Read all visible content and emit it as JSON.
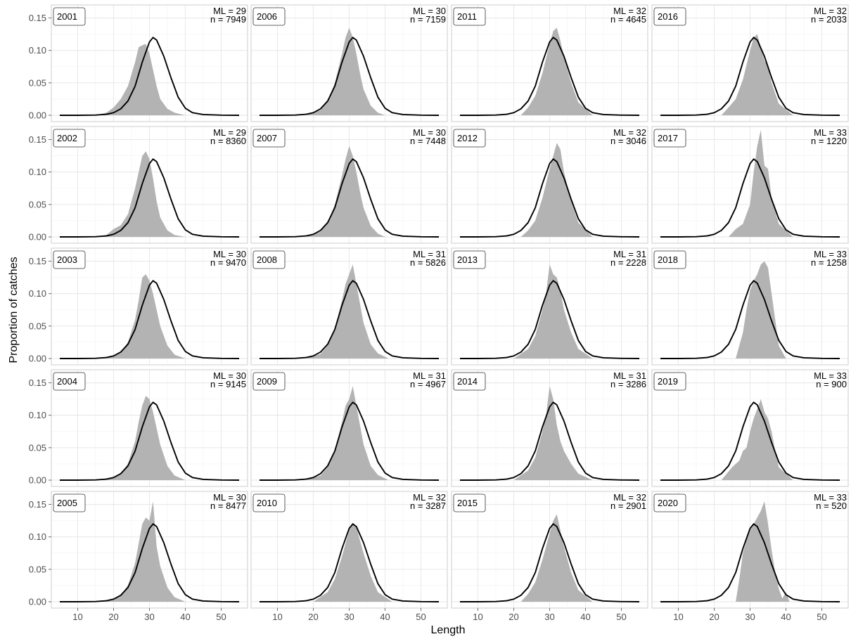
{
  "chart_data": {
    "type": "area",
    "xlabel": "Length",
    "ylabel": "Proportion of catches",
    "xlim": [
      5,
      55
    ],
    "ylim": [
      0,
      0.15
    ],
    "x_ticks": [
      10,
      20,
      30,
      40,
      50
    ],
    "y_ticks": [
      0.0,
      0.05,
      0.1,
      0.15
    ],
    "y_tick_labels": [
      "0.00",
      "0.05",
      "0.10",
      "0.15"
    ],
    "grid": true,
    "layout": "5 rows x 4 columns, years run down each column",
    "colors": {
      "observed_fill": "#b3b3b3",
      "reference_line": "#000000",
      "panel_border": "#cccccc"
    },
    "reference_curve": {
      "name": "",
      "x": [
        5,
        10,
        15,
        18,
        20,
        22,
        24,
        26,
        28,
        30,
        31,
        32,
        34,
        36,
        38,
        40,
        42,
        45,
        50,
        55
      ],
      "y": [
        0,
        0,
        0.0003,
        0.0015,
        0.004,
        0.01,
        0.022,
        0.045,
        0.082,
        0.113,
        0.12,
        0.116,
        0.091,
        0.058,
        0.028,
        0.011,
        0.004,
        0.0012,
        0.0002,
        0
      ]
    },
    "panels": [
      {
        "year": "2001",
        "ml_label": "ML = 29",
        "n_label": "n = 7949",
        "x": [
          15,
          18,
          20,
          22,
          24,
          26,
          27,
          28,
          29,
          30,
          31,
          32,
          33,
          35,
          37,
          40
        ],
        "y": [
          0,
          0.004,
          0.012,
          0.025,
          0.045,
          0.082,
          0.105,
          0.108,
          0.11,
          0.095,
          0.07,
          0.045,
          0.025,
          0.01,
          0.004,
          0
        ]
      },
      {
        "year": "2002",
        "ml_label": "ML = 29",
        "n_label": "n = 8360",
        "x": [
          15,
          18,
          20,
          22,
          24,
          26,
          27,
          28,
          29,
          30,
          31,
          32,
          33,
          35,
          37,
          40
        ],
        "y": [
          0,
          0.003,
          0.012,
          0.018,
          0.035,
          0.075,
          0.1,
          0.125,
          0.132,
          0.12,
          0.09,
          0.055,
          0.03,
          0.01,
          0.003,
          0
        ]
      },
      {
        "year": "2003",
        "ml_label": "ML = 30",
        "n_label": "n = 9470",
        "x": [
          16,
          20,
          22,
          24,
          26,
          27,
          28,
          29,
          30,
          31,
          32,
          33,
          35,
          37,
          40
        ],
        "y": [
          0,
          0.004,
          0.01,
          0.025,
          0.06,
          0.09,
          0.125,
          0.13,
          0.12,
          0.1,
          0.075,
          0.05,
          0.02,
          0.006,
          0
        ]
      },
      {
        "year": "2004",
        "ml_label": "ML = 30",
        "n_label": "n = 9145",
        "x": [
          16,
          20,
          22,
          24,
          26,
          27,
          28,
          29,
          30,
          31,
          32,
          33,
          35,
          37,
          40
        ],
        "y": [
          0,
          0.004,
          0.01,
          0.025,
          0.06,
          0.09,
          0.115,
          0.13,
          0.125,
          0.105,
          0.08,
          0.055,
          0.022,
          0.007,
          0
        ]
      },
      {
        "year": "2005",
        "ml_label": "ML = 30",
        "n_label": "n = 8477",
        "x": [
          16,
          20,
          22,
          24,
          26,
          27,
          28,
          29,
          30,
          31,
          32,
          33,
          35,
          37,
          40
        ],
        "y": [
          0,
          0.004,
          0.01,
          0.025,
          0.06,
          0.09,
          0.12,
          0.13,
          0.125,
          0.155,
          0.085,
          0.055,
          0.022,
          0.007,
          0
        ]
      },
      {
        "year": "2006",
        "ml_label": "ML = 30",
        "n_label": "n = 7159",
        "x": [
          18,
          22,
          24,
          26,
          28,
          29,
          30,
          31,
          32,
          33,
          34,
          36,
          38,
          40
        ],
        "y": [
          0,
          0.008,
          0.022,
          0.05,
          0.095,
          0.12,
          0.135,
          0.12,
          0.095,
          0.065,
          0.04,
          0.015,
          0.004,
          0
        ]
      },
      {
        "year": "2007",
        "ml_label": "ML = 30",
        "n_label": "n = 7448",
        "x": [
          18,
          22,
          24,
          26,
          28,
          29,
          30,
          31,
          32,
          33,
          34,
          36,
          38,
          40
        ],
        "y": [
          0,
          0.008,
          0.022,
          0.05,
          0.095,
          0.12,
          0.14,
          0.125,
          0.1,
          0.07,
          0.045,
          0.017,
          0.005,
          0
        ]
      },
      {
        "year": "2008",
        "ml_label": "ML = 31",
        "n_label": "n = 5826",
        "x": [
          18,
          22,
          24,
          26,
          28,
          29,
          30,
          31,
          32,
          33,
          34,
          36,
          38,
          41
        ],
        "y": [
          0,
          0.007,
          0.02,
          0.045,
          0.09,
          0.115,
          0.13,
          0.145,
          0.115,
          0.085,
          0.055,
          0.022,
          0.008,
          0
        ]
      },
      {
        "year": "2009",
        "ml_label": "ML = 31",
        "n_label": "n = 4967",
        "x": [
          18,
          22,
          24,
          26,
          28,
          29,
          30,
          31,
          32,
          33,
          34,
          36,
          38,
          41
        ],
        "y": [
          0,
          0.007,
          0.02,
          0.045,
          0.09,
          0.115,
          0.125,
          0.145,
          0.115,
          0.085,
          0.055,
          0.022,
          0.008,
          0
        ]
      },
      {
        "year": "2010",
        "ml_label": "ML = 32",
        "n_label": "n = 3287",
        "x": [
          20,
          24,
          26,
          28,
          30,
          31,
          32,
          33,
          34,
          36,
          38,
          42
        ],
        "y": [
          0,
          0.015,
          0.035,
          0.07,
          0.11,
          0.12,
          0.115,
          0.095,
          0.075,
          0.04,
          0.015,
          0
        ]
      },
      {
        "year": "2011",
        "ml_label": "ML = 32",
        "n_label": "n = 4645",
        "x": [
          22,
          24,
          26,
          28,
          30,
          31,
          32,
          33,
          34,
          36,
          38,
          42
        ],
        "y": [
          0,
          0.012,
          0.03,
          0.065,
          0.11,
          0.13,
          0.135,
          0.115,
          0.09,
          0.05,
          0.02,
          0
        ]
      },
      {
        "year": "2012",
        "ml_label": "ML = 32",
        "n_label": "n = 3046",
        "x": [
          22,
          24,
          26,
          28,
          30,
          31,
          32,
          33,
          34,
          36,
          38,
          42
        ],
        "y": [
          0,
          0.01,
          0.025,
          0.06,
          0.105,
          0.125,
          0.145,
          0.135,
          0.1,
          0.055,
          0.022,
          0
        ]
      },
      {
        "year": "2013",
        "ml_label": "ML = 31",
        "n_label": "n = 2228",
        "x": [
          20,
          24,
          26,
          28,
          29,
          30,
          31,
          32,
          33,
          34,
          36,
          38,
          42
        ],
        "y": [
          0,
          0.015,
          0.035,
          0.075,
          0.1,
          0.145,
          0.13,
          0.125,
          0.105,
          0.075,
          0.04,
          0.015,
          0
        ]
      },
      {
        "year": "2014",
        "ml_label": "ML = 31",
        "n_label": "n = 3286",
        "x": [
          20,
          24,
          26,
          28,
          29,
          30,
          31,
          32,
          33,
          34,
          36,
          38,
          42
        ],
        "y": [
          0,
          0.015,
          0.035,
          0.075,
          0.1,
          0.145,
          0.125,
          0.085,
          0.06,
          0.045,
          0.025,
          0.01,
          0
        ]
      },
      {
        "year": "2015",
        "ml_label": "ML = 32",
        "n_label": "n = 2901",
        "x": [
          22,
          24,
          26,
          28,
          30,
          31,
          32,
          33,
          34,
          36,
          38,
          42
        ],
        "y": [
          0,
          0.012,
          0.03,
          0.065,
          0.105,
          0.125,
          0.135,
          0.11,
          0.085,
          0.045,
          0.018,
          0
        ]
      },
      {
        "year": "2016",
        "ml_label": "ML = 32",
        "n_label": "n = 2033",
        "x": [
          22,
          24,
          26,
          28,
          30,
          31,
          32,
          33,
          34,
          35,
          36,
          38,
          42
        ],
        "y": [
          0,
          0.012,
          0.025,
          0.055,
          0.1,
          0.12,
          0.125,
          0.105,
          0.085,
          0.075,
          0.05,
          0.018,
          0
        ]
      },
      {
        "year": "2017",
        "ml_label": "ML = 33",
        "n_label": "n = 1220",
        "x": [
          24,
          26,
          28,
          30,
          31,
          32,
          33,
          34,
          35,
          36,
          38,
          42
        ],
        "y": [
          0,
          0.012,
          0.02,
          0.05,
          0.1,
          0.14,
          0.165,
          0.11,
          0.105,
          0.06,
          0.02,
          0
        ]
      },
      {
        "year": "2018",
        "ml_label": "ML = 33",
        "n_label": "n = 1258",
        "x": [
          26,
          27,
          28,
          29,
          30,
          31,
          32,
          33,
          34,
          35,
          36,
          37,
          38,
          40
        ],
        "y": [
          0,
          0.02,
          0.04,
          0.075,
          0.105,
          0.12,
          0.13,
          0.145,
          0.15,
          0.14,
          0.1,
          0.06,
          0.02,
          0
        ]
      },
      {
        "year": "2019",
        "ml_label": "ML = 33",
        "n_label": "n = 900",
        "x": [
          22,
          25,
          27,
          28,
          29,
          30,
          31,
          32,
          33,
          34,
          35,
          36,
          37,
          38,
          42
        ],
        "y": [
          0,
          0.02,
          0.03,
          0.045,
          0.05,
          0.075,
          0.095,
          0.11,
          0.125,
          0.105,
          0.095,
          0.075,
          0.045,
          0.02,
          0
        ]
      },
      {
        "year": "2020",
        "ml_label": "ML = 33",
        "n_label": "n = 520",
        "x": [
          26,
          27,
          28,
          29,
          30,
          31,
          32,
          33,
          34,
          35,
          36,
          37,
          38,
          39,
          40,
          41
        ],
        "y": [
          0,
          0.035,
          0.075,
          0.095,
          0.11,
          0.12,
          0.13,
          0.14,
          0.155,
          0.12,
          0.08,
          0.045,
          0.02,
          0.005,
          0.015,
          0
        ]
      }
    ]
  }
}
